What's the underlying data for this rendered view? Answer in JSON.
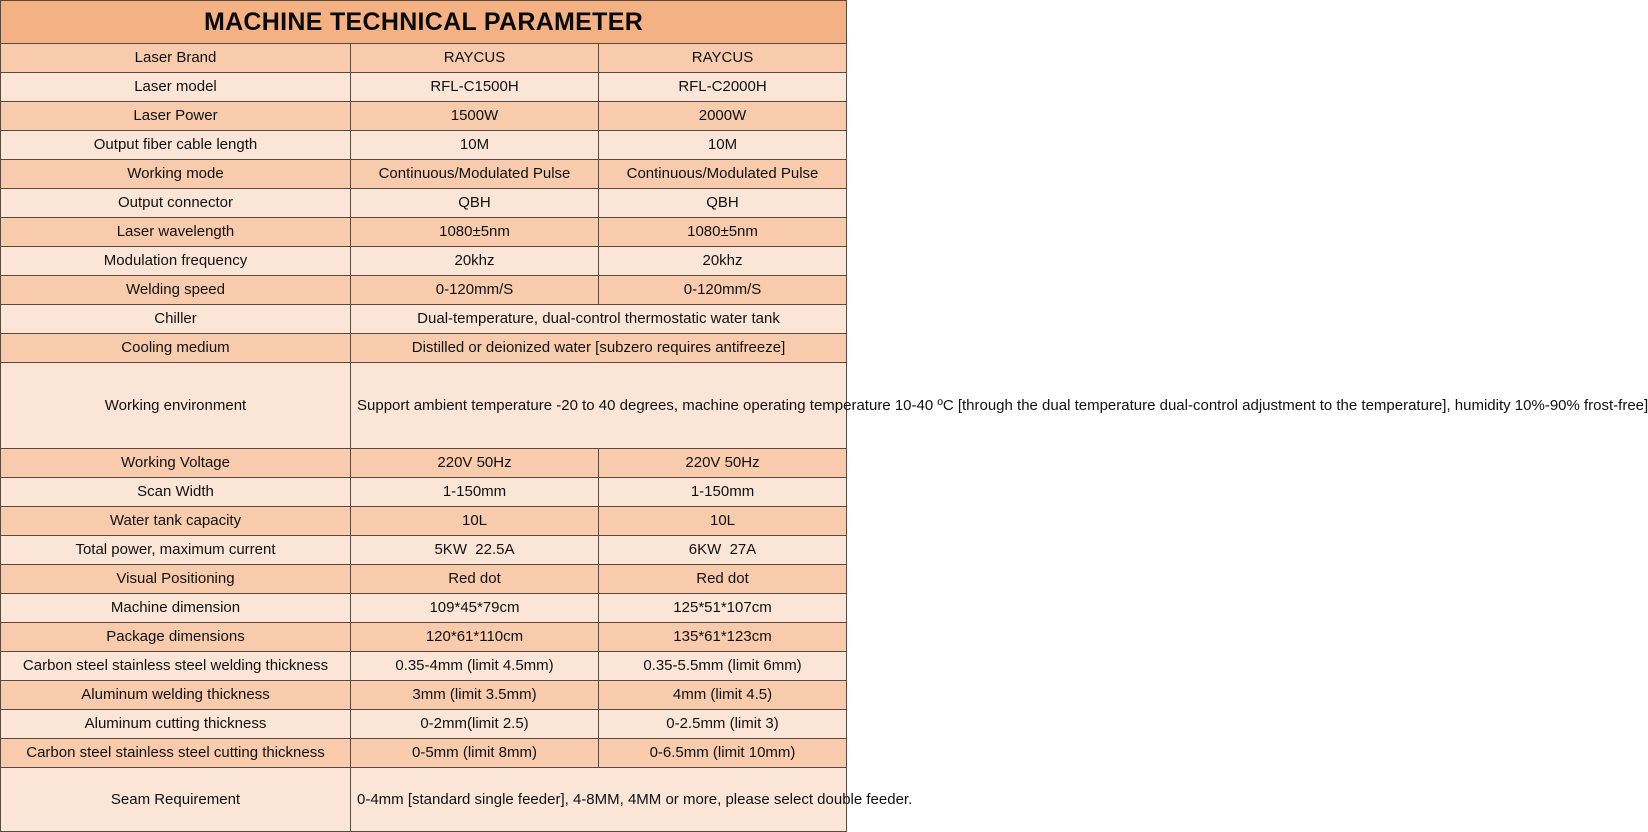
{
  "title": "MACHINE TECHNICAL PARAMETER",
  "colors": {
    "header_bg": "#f4b183",
    "row_dark": "#f8cbad",
    "row_light": "#fbe5d6",
    "border": "#5a4a3e"
  },
  "rows": [
    {
      "label": "Laser Brand",
      "a": "RAYCUS",
      "b": "RAYCUS"
    },
    {
      "label": "Laser model",
      "a": "RFL-C1500H",
      "b": "RFL-C2000H"
    },
    {
      "label": "Laser Power",
      "a": "1500W",
      "b": "2000W"
    },
    {
      "label": "Output fiber cable length",
      "a": "10M",
      "b": "10M"
    },
    {
      "label": "Working mode",
      "a": "Continuous/Modulated Pulse",
      "b": "Continuous/Modulated Pulse"
    },
    {
      "label": "Output connector",
      "a": "QBH",
      "b": "QBH"
    },
    {
      "label": "Laser wavelength",
      "a": "1080±5nm",
      "b": "1080±5nm"
    },
    {
      "label": "Modulation frequency",
      "a": "20khz",
      "b": "20khz"
    },
    {
      "label": "Welding speed",
      "a": "0-120mm/S",
      "b": "0-120mm/S"
    },
    {
      "label": "Chiller",
      "value": "Dual-temperature, dual-control thermostatic water tank"
    },
    {
      "label": "Cooling medium",
      "value": "Distilled or deionized water [subzero requires antifreeze]"
    },
    {
      "label": "Working environment",
      "value": "Support ambient temperature -20 to 40 degrees, machine operating temperature 10-40 ºC [through the dual temperature dual-control adjustment to the temperature], humidity 10%-90% frost-free]"
    },
    {
      "label": "Working Voltage",
      "a": "220V 50Hz",
      "b": "220V 50Hz"
    },
    {
      "label": "Scan Width",
      "a": "1-150mm",
      "b": "1-150mm"
    },
    {
      "label": "Water tank capacity",
      "a": "10L",
      "b": "10L"
    },
    {
      "label": "Total power, maximum current",
      "a": "5KW  22.5A",
      "b": "6KW  27A"
    },
    {
      "label": "Visual Positioning",
      "a": "Red dot",
      "b": "Red dot"
    },
    {
      "label": "Machine dimension",
      "a": "109*45*79cm",
      "b": "125*51*107cm"
    },
    {
      "label": "Package dimensions",
      "a": "120*61*110cm",
      "b": "135*61*123cm"
    },
    {
      "label": "Carbon steel stainless steel welding thickness",
      "a": "0.35-4mm (limit 4.5mm)",
      "b": "0.35-5.5mm (limit 6mm)"
    },
    {
      "label": "Aluminum welding thickness",
      "a": "3mm (limit 3.5mm)",
      "b": "4mm (limit 4.5)"
    },
    {
      "label": "Aluminum cutting thickness",
      "a": "0-2mm(limit 2.5)",
      "b": "0-2.5mm (limit 3)"
    },
    {
      "label": "Carbon steel stainless steel cutting thickness",
      "a": "0-5mm (limit 8mm)",
      "b": "0-6.5mm (limit 10mm)"
    },
    {
      "label": "Seam Requirement",
      "value": "0-4mm [standard single feeder], 4-8MM, 4MM or more, please select double feeder."
    }
  ]
}
